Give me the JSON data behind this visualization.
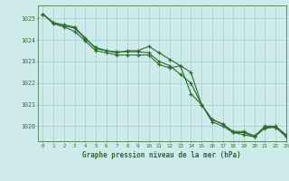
{
  "title": "Graphe pression niveau de la mer (hPa)",
  "background_color": "#ceeaea",
  "grid_color": "#aad4d4",
  "line_color": "#2d6e2d",
  "marker_color": "#2d6e2d",
  "xlim": [
    -0.5,
    23
  ],
  "ylim": [
    1019.3,
    1025.6
  ],
  "yticks": [
    1020,
    1021,
    1022,
    1023,
    1024,
    1025
  ],
  "xticks": [
    0,
    1,
    2,
    3,
    4,
    5,
    6,
    7,
    8,
    9,
    10,
    11,
    12,
    13,
    14,
    15,
    16,
    17,
    18,
    19,
    20,
    21,
    22,
    23
  ],
  "series": [
    [
      1025.2,
      1024.8,
      1024.7,
      1024.6,
      1024.1,
      1023.6,
      1023.5,
      1023.4,
      1023.5,
      1023.5,
      1023.7,
      1023.4,
      1023.1,
      1022.8,
      1022.5,
      1021.0,
      1020.2,
      1020.0,
      1019.7,
      1019.7,
      1019.5,
      1020.0,
      1020.0,
      1019.6
    ],
    [
      1025.2,
      1024.8,
      1024.65,
      1024.55,
      1024.05,
      1023.65,
      1023.5,
      1023.45,
      1023.45,
      1023.45,
      1023.4,
      1023.0,
      1022.8,
      1022.4,
      1022.0,
      1021.0,
      1020.3,
      1020.1,
      1019.75,
      1019.75,
      1019.55,
      1019.95,
      1019.95,
      1019.55
    ],
    [
      1025.2,
      1024.75,
      1024.6,
      1024.4,
      1023.95,
      1023.5,
      1023.4,
      1023.3,
      1023.3,
      1023.3,
      1023.3,
      1022.85,
      1022.7,
      1022.8,
      1021.5,
      1021.0,
      1020.3,
      1020.1,
      1019.7,
      1019.6,
      1019.5,
      1019.9,
      1019.95,
      1019.5
    ]
  ]
}
